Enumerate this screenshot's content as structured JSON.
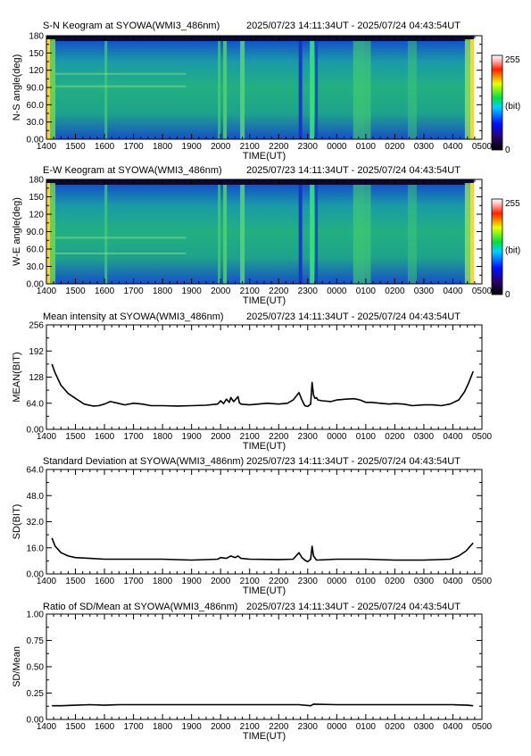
{
  "time_range": "2025/07/23 14:11:34UT - 2025/07/24 04:43:54UT",
  "x_axis": {
    "label": "TIME(UT)",
    "ticks": [
      "1400",
      "1500",
      "1600",
      "1700",
      "1800",
      "1900",
      "2000",
      "2100",
      "2200",
      "2300",
      "0000",
      "0100",
      "0200",
      "0300",
      "0400",
      "0500"
    ]
  },
  "colorbar": {
    "max": "255",
    "unit": "(bit)",
    "min": "0"
  },
  "panels": [
    {
      "id": "sn",
      "title": "S-N Keogram at SYOWA(WMI3_486nm)",
      "ylabel": "N-S angle(deg)",
      "yticks": [
        "0.00",
        "30.0",
        "60.0",
        "90.0",
        "120",
        "150",
        "180"
      ]
    },
    {
      "id": "ew",
      "title": "E-W Keogram at SYOWA(WMI3_486nm)",
      "ylabel": "W-E angle(deg)",
      "yticks": [
        "0.00",
        "30.0",
        "60.0",
        "90.0",
        "120",
        "150",
        "180"
      ]
    },
    {
      "id": "mean",
      "title": "Mean intensity at SYOWA(WMI3_486nm)",
      "ylabel": "MEAN(BIT)",
      "yticks": [
        "0.00",
        "64.0",
        "128",
        "192",
        "256"
      ]
    },
    {
      "id": "sd",
      "title": "Standard Deviation at SYOWA(WMI3_486nm)",
      "ylabel": "SD(BIT)",
      "yticks": [
        "0.00",
        "16.0",
        "32.0",
        "48.0",
        "64.0"
      ]
    },
    {
      "id": "ratio",
      "title": "Ratio of SD/Mean at SYOWA(WMI3_486nm)",
      "ylabel": "SD/Mean",
      "yticks": [
        "0.00",
        "0.25",
        "0.50",
        "0.75",
        "1.00"
      ]
    }
  ],
  "chart_data": [
    {
      "type": "heatmap",
      "title": "S-N Keogram at SYOWA(WMI3_486nm)",
      "subtitle": "2025/07/23 14:11:34UT - 2025/07/24 04:43:54UT",
      "xlabel": "TIME(UT)",
      "ylabel": "N-S angle(deg)",
      "ylim": [
        0,
        180
      ],
      "colorscale": {
        "min": 0,
        "max": 255,
        "unit": "(bit)"
      },
      "bright_times_ut": [
        "14:11",
        "16:05",
        "19:55",
        "20:15",
        "20:45",
        "22:45",
        "23:10",
        "00:45",
        "01:00",
        "02:35",
        "04:40"
      ]
    },
    {
      "type": "heatmap",
      "title": "E-W Keogram at SYOWA(WMI3_486nm)",
      "subtitle": "2025/07/23 14:11:34UT - 2025/07/24 04:43:54UT",
      "xlabel": "TIME(UT)",
      "ylabel": "W-E angle(deg)",
      "ylim": [
        0,
        180
      ],
      "colorscale": {
        "min": 0,
        "max": 255,
        "unit": "(bit)"
      },
      "bright_times_ut": [
        "14:11",
        "16:05",
        "19:55",
        "20:15",
        "20:45",
        "22:45",
        "23:10",
        "00:45",
        "01:00",
        "02:35",
        "04:40"
      ]
    },
    {
      "type": "line",
      "title": "Mean intensity at SYOWA(WMI3_486nm)",
      "subtitle": "2025/07/23 14:11:34UT - 2025/07/24 04:43:54UT",
      "xlabel": "TIME(UT)",
      "ylabel": "MEAN(BIT)",
      "ylim": [
        0,
        256
      ],
      "x_unit": "hours UT",
      "x": [
        14.19,
        14.3,
        14.5,
        14.75,
        15.0,
        15.3,
        15.6,
        15.8,
        16.0,
        16.2,
        16.4,
        16.7,
        17.0,
        17.3,
        17.6,
        18.0,
        18.5,
        19.0,
        19.5,
        19.9,
        20.0,
        20.1,
        20.2,
        20.3,
        20.35,
        20.45,
        20.5,
        20.6,
        20.65,
        20.7,
        20.8,
        21.0,
        21.3,
        21.6,
        22.0,
        22.3,
        22.5,
        22.7,
        22.8,
        22.9,
        23.0,
        23.1,
        23.15,
        23.2,
        23.25,
        23.3,
        23.35,
        23.5,
        23.8,
        24.0,
        24.3,
        24.6,
        24.8,
        25.0,
        25.2,
        25.5,
        25.8,
        26.0,
        26.3,
        26.6,
        27.0,
        27.3,
        27.6,
        27.9,
        28.2,
        28.4,
        28.55,
        28.7
      ],
      "y": [
        160,
        138,
        108,
        88,
        76,
        62,
        57,
        58,
        62,
        68,
        65,
        60,
        64,
        62,
        58,
        58,
        57,
        58,
        59,
        62,
        70,
        63,
        74,
        66,
        78,
        68,
        72,
        80,
        65,
        62,
        61,
        60,
        62,
        64,
        62,
        64,
        72,
        90,
        72,
        58,
        56,
        62,
        115,
        84,
        76,
        78,
        72,
        70,
        68,
        72,
        74,
        75,
        72,
        66,
        66,
        64,
        62,
        63,
        62,
        58,
        60,
        60,
        58,
        62,
        72,
        92,
        115,
        142
      ]
    },
    {
      "type": "line",
      "title": "Standard Deviation at SYOWA(WMI3_486nm)",
      "subtitle": "2025/07/23 14:11:34UT - 2025/07/24 04:43:54UT",
      "xlabel": "TIME(UT)",
      "ylabel": "SD(BIT)",
      "ylim": [
        0,
        64
      ],
      "x_unit": "hours UT",
      "x": [
        14.19,
        14.3,
        14.5,
        14.75,
        15.0,
        15.5,
        16.0,
        16.5,
        17.0,
        18.0,
        19.0,
        19.9,
        20.0,
        20.2,
        20.35,
        20.5,
        20.6,
        20.7,
        21.0,
        22.0,
        22.5,
        22.7,
        22.8,
        22.9,
        23.0,
        23.1,
        23.15,
        23.2,
        23.3,
        24.0,
        25.0,
        26.0,
        27.0,
        27.9,
        28.2,
        28.45,
        28.7
      ],
      "y": [
        22,
        17,
        13,
        11,
        10,
        9.5,
        9,
        9,
        9,
        9,
        8.5,
        9,
        10,
        9.5,
        11,
        10,
        11,
        9.5,
        9,
        8.8,
        9,
        13,
        10,
        8.5,
        7.5,
        9,
        17,
        11,
        8.5,
        9,
        9,
        8.5,
        8.5,
        9,
        11,
        14,
        19
      ]
    },
    {
      "type": "line",
      "title": "Ratio of SD/Mean at SYOWA(WMI3_486nm)",
      "subtitle": "2025/07/23 14:11:34UT - 2025/07/24 04:43:54UT",
      "xlabel": "TIME(UT)",
      "ylabel": "SD/Mean",
      "ylim": [
        0,
        1
      ],
      "x_unit": "hours UT",
      "x": [
        14.19,
        14.5,
        15.0,
        15.5,
        16.0,
        16.5,
        17.0,
        18.0,
        19.0,
        20.0,
        21.0,
        22.0,
        22.7,
        23.1,
        23.2,
        24.0,
        25.0,
        26.0,
        27.0,
        28.0,
        28.5,
        28.7
      ],
      "y": [
        0.13,
        0.13,
        0.135,
        0.14,
        0.135,
        0.14,
        0.14,
        0.14,
        0.14,
        0.14,
        0.14,
        0.14,
        0.14,
        0.13,
        0.145,
        0.14,
        0.14,
        0.14,
        0.14,
        0.14,
        0.135,
        0.13
      ]
    }
  ]
}
